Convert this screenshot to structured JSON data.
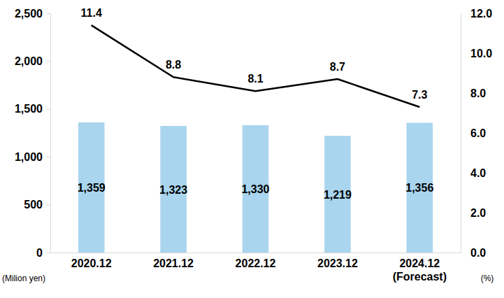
{
  "chart_data": {
    "type": "bar",
    "categories": [
      "2020.12",
      "2021.12",
      "2022.12",
      "2023.12",
      "2024.12\n(Forecast)"
    ],
    "series": [
      {
        "type": "bar",
        "color": "#a9d5ee",
        "values": [
          1359,
          1323,
          1330,
          1219,
          1356
        ],
        "value_labels": [
          "1,359",
          "1,323",
          "1,330",
          "1,219",
          "1,356"
        ]
      },
      {
        "type": "line",
        "axis": "y2",
        "color": "#000000",
        "values": [
          11.4,
          8.8,
          8.1,
          8.7,
          7.3
        ]
      }
    ],
    "ylim": [
      0,
      2500
    ],
    "yticks": [
      0,
      500,
      {
        "value": 1000,
        "label": "1,000"
      },
      {
        "value": 1500,
        "label": "1,500"
      },
      {
        "value": 2000,
        "label": "2,000"
      },
      {
        "value": 2500,
        "label": "2,500"
      }
    ],
    "y2lim": [
      0,
      12
    ],
    "y2ticks": [
      {
        "value": 0,
        "label": "0.0"
      },
      {
        "value": 2,
        "label": "2.0"
      },
      {
        "value": 4,
        "label": "4.0"
      },
      {
        "value": 6,
        "label": "6.0"
      },
      {
        "value": 8,
        "label": "8.0"
      },
      {
        "value": 10,
        "label": "10.0"
      },
      {
        "value": 12,
        "label": "12.0"
      }
    ],
    "y_label": "(Milion yen)",
    "y2_label": "(%)",
    "data_labels": true,
    "grid": false
  }
}
